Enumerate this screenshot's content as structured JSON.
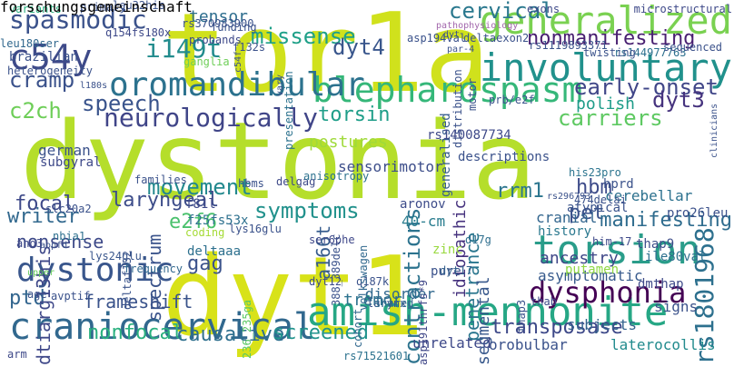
{
  "words": [
    {
      "text": "dystonia",
      "color": "#b5de2b"
    },
    {
      "text": "dyt1",
      "color": "#d8e219"
    },
    {
      "text": "tor1a",
      "color": "#d0e11c"
    },
    {
      "text": "amish-mennonite",
      "color": "#26a785"
    },
    {
      "text": "craniocervical",
      "color": "#31688e"
    },
    {
      "text": "torsion",
      "color": "#2a9d8a"
    },
    {
      "text": "generalized",
      "color": "#7ad151"
    },
    {
      "text": "involuntary",
      "color": "#21918c"
    },
    {
      "text": "blepharospasm",
      "color": "#35b779"
    },
    {
      "text": "oromandibular",
      "color": "#2c728e"
    },
    {
      "text": "dystonic",
      "color": "#39568c"
    },
    {
      "text": "dysphonia",
      "color": "#440154"
    },
    {
      "text": "c54y",
      "color": "#3e4a89"
    },
    {
      "text": "neurologically",
      "color": "#404588"
    },
    {
      "text": "spasmodic",
      "color": "#3b528b"
    },
    {
      "text": "nonmanifesting",
      "color": "#481f70"
    },
    {
      "text": "rs1801968",
      "color": "#2d708e"
    },
    {
      "text": "transposase",
      "color": "#3e4989"
    },
    {
      "text": "missense",
      "color": "#1fa088"
    },
    {
      "text": "cervical",
      "color": "#2a788e"
    },
    {
      "text": "early-onset",
      "color": "#404688"
    },
    {
      "text": "dyt3",
      "color": "#46337e"
    },
    {
      "text": "carriers",
      "color": "#5ec962"
    },
    {
      "text": "i149t",
      "color": "#228c8d"
    },
    {
      "text": "speech",
      "color": "#3a548c"
    },
    {
      "text": "c2ch",
      "color": "#6ece58"
    },
    {
      "text": "dyt4",
      "color": "#39568c"
    },
    {
      "text": "torsin",
      "color": "#1f9e89"
    },
    {
      "text": "cramp",
      "color": "#3b528b"
    },
    {
      "text": "movement",
      "color": "#23898e"
    },
    {
      "text": "symptoms",
      "color": "#21918c"
    },
    {
      "text": "laryngeal",
      "color": "#3d4d8a"
    },
    {
      "text": "contractions",
      "color": "#2c738e"
    },
    {
      "text": "writer",
      "color": "#31688e"
    },
    {
      "text": "focal",
      "color": "#3e4989"
    },
    {
      "text": "ptd",
      "color": "#32658e"
    },
    {
      "text": "nonfocal",
      "color": "#2ab07f"
    },
    {
      "text": "causative",
      "color": "#2e6f8e"
    },
    {
      "text": "screened",
      "color": "#20938c"
    },
    {
      "text": "e2f6",
      "color": "#4ac16d"
    },
    {
      "text": "gag",
      "color": "#3b528b"
    },
    {
      "text": "hbm",
      "color": "#3e4c8a"
    },
    {
      "text": "pet",
      "color": "#3b528b"
    },
    {
      "text": "manifesting",
      "color": "#2f6c8e"
    },
    {
      "text": "rrm1",
      "color": "#2b758e"
    },
    {
      "text": "dtiarg13his",
      "color": "#3f4889"
    },
    {
      "text": "spectrum",
      "color": "#3a538b"
    },
    {
      "text": "nonsense",
      "color": "#3e4a89"
    },
    {
      "text": "frameshift",
      "color": "#3a538b"
    },
    {
      "text": "penetrance",
      "color": "#2a768e"
    },
    {
      "text": "segmental",
      "color": "#38588c"
    },
    {
      "text": "idiopathic",
      "color": "#46327e"
    },
    {
      "text": "a166t",
      "color": "#365c8d"
    },
    {
      "text": "postures",
      "color": "#9fda3a"
    },
    {
      "text": "polish",
      "color": "#1e9c89"
    },
    {
      "text": "sensorimotor",
      "color": "#3d4e8a"
    },
    {
      "text": "tensor",
      "color": "#2e6e8e"
    },
    {
      "text": "generalised",
      "color": "#365d8d"
    },
    {
      "text": "tremor",
      "color": "#2c728e"
    },
    {
      "text": "cranial",
      "color": "#32658e"
    },
    {
      "text": "ancestry",
      "color": "#3f4788"
    },
    {
      "text": "signs",
      "color": "#3b528b"
    },
    {
      "text": "cerebellar",
      "color": "#2c718e"
    },
    {
      "text": "asymptomatic",
      "color": "#375a8c"
    },
    {
      "text": "disorder",
      "color": "#31688e"
    },
    {
      "text": "40-cm",
      "color": "#287c8e"
    },
    {
      "text": "dmthap",
      "color": "#3e4a89"
    },
    {
      "text": "latero­collis",
      "color": "#228b8d"
    },
    {
      "text": "orobulbar",
      "color": "#3b528b"
    },
    {
      "text": "unrelated",
      "color": "#3e4989"
    },
    {
      "text": "putamen",
      "color": "#8fd744"
    },
    {
      "text": "subjects",
      "color": "#33638d"
    },
    {
      "text": "history",
      "color": "#2a788e"
    },
    {
      "text": "atypical",
      "color": "#3a538b"
    },
    {
      "text": "thap9",
      "color": "#3d4e8a"
    },
    {
      "text": "pro26leu",
      "color": "#3b518b"
    },
    {
      "text": "his23pro",
      "color": "#2b748e"
    },
    {
      "text": "him-17",
      "color": "#3e4989"
    },
    {
      "text": "ile80val",
      "color": "#2d708e"
    },
    {
      "text": "pure",
      "color": "#3b528b"
    },
    {
      "text": "aronov",
      "color": "#3e4c8a"
    },
    {
      "text": "zinc",
      "color": "#98d83e"
    },
    {
      "text": "dyt17",
      "color": "#35608d"
    },
    {
      "text": "dyt12",
      "color": "#3e4c8a"
    },
    {
      "text": "q187k",
      "color": "#3b528b"
    },
    {
      "text": "larynx",
      "color": "#3b528b"
    },
    {
      "text": "cohort",
      "color": "#31688e"
    },
    {
      "text": "shared",
      "color": "#2f6b8e"
    },
    {
      "text": "rs71521601",
      "color": "#2c728e"
    },
    {
      "text": "asp191thrfs*9",
      "color": "#3f4788"
    },
    {
      "text": "thap3",
      "color": "#3b528b"
    },
    {
      "text": "thab",
      "color": "#3e4a89"
    },
    {
      "text": "ser6phe",
      "color": "#3f4889"
    },
    {
      "text": "volkswagen",
      "color": "#31688e"
    },
    {
      "text": "388_389delc",
      "color": "#3b528b"
    },
    {
      "text": "nbia1",
      "color": "#2d708e"
    },
    {
      "text": "slc20a2",
      "color": "#3b528b"
    },
    {
      "text": "ano3",
      "color": "#3e4989"
    },
    {
      "text": "aopfd",
      "color": "#3b528b"
    },
    {
      "text": "deltaf132",
      "color": "#3a538b"
    },
    {
      "text": "deltaaa",
      "color": "#2d708e"
    },
    {
      "text": "lys24glu",
      "color": "#39568c"
    },
    {
      "text": "frequency",
      "color": "#31688e"
    },
    {
      "text": "avptif",
      "color": "#3b528b"
    },
    {
      "text": "age",
      "color": "#3b528b"
    },
    {
      "text": "upper",
      "color": "#67cc5c"
    },
    {
      "text": "arm",
      "color": "#3e4989"
    },
    {
      "text": "236_235ga",
      "color": "#5ac864"
    },
    {
      "text": "coding",
      "color": "#a5db36"
    },
    {
      "text": "f25fs53x",
      "color": "#2d708e"
    },
    {
      "text": "lys16glu",
      "color": "#3b528b"
    },
    {
      "text": "f81l",
      "color": "#3e4989"
    },
    {
      "text": "families",
      "color": "#3b528b"
    },
    {
      "text": "hbms",
      "color": "#3b528b"
    },
    {
      "text": "delgag",
      "color": "#3e4989"
    },
    {
      "text": "anisotropy",
      "color": "#2c728e"
    },
    {
      "text": "descriptions",
      "color": "#3b528b"
    },
    {
      "text": "d17g",
      "color": "#2e6e8e"
    },
    {
      "text": "hprd",
      "color": "#3b528b"
    },
    {
      "text": "german",
      "color": "#3b528b"
    },
    {
      "text": "subgyral",
      "color": "#3e4989"
    },
    {
      "text": "heterogeneity",
      "color": "#3b528b"
    },
    {
      "text": "brazilian",
      "color": "#3b528b"
    },
    {
      "text": "variants",
      "color": "#2ab07f"
    },
    {
      "text": "primary",
      "color": "#3b528b"
    },
    {
      "text": "leu32his",
      "color": "#3b528b"
    },
    {
      "text": "q154fs180x",
      "color": "#3e4989"
    },
    {
      "text": "leu180ser",
      "color": "#31688e"
    },
    {
      "text": "rs370983900",
      "color": "#3b528b"
    },
    {
      "text": "funding",
      "color": "#3b528b"
    },
    {
      "text": "probands",
      "color": "#3e4989"
    },
    {
      "text": "f132s",
      "color": "#3b528b"
    },
    {
      "text": "c54f",
      "color": "#3b528b"
    },
    {
      "text": "ganglia",
      "color": "#6ece58"
    },
    {
      "text": "vary",
      "color": "#3b528b"
    },
    {
      "text": "presentation",
      "color": "#2c728e"
    },
    {
      "text": "asp194val",
      "color": "#3b528b"
    },
    {
      "text": "deltaexon2",
      "color": "#3b528b"
    },
    {
      "text": "rs144977763",
      "color": "#2d708e"
    },
    {
      "text": "rs1119893371",
      "color": "#3b528b"
    },
    {
      "text": "twisting",
      "color": "#3b528b"
    },
    {
      "text": "sequenced",
      "color": "#3b528b"
    },
    {
      "text": "exons",
      "color": "#3e4989"
    },
    {
      "text": "distribution",
      "color": "#3b528b"
    },
    {
      "text": "motor",
      "color": "#3b528b"
    },
    {
      "text": "prb/e2f",
      "color": "#3b528b"
    },
    {
      "text": "rs140087734",
      "color": "#3e4989"
    },
    {
      "text": "474delai",
      "color": "#3b528b"
    },
    {
      "text": "rs296793",
      "color": "#3b528b"
    },
    {
      "text": "l180s",
      "color": "#3b528b"
    },
    {
      "text": "pathophysiology",
      "color": "#a267ac"
    },
    {
      "text": "dyt",
      "color": "#3b528b"
    },
    {
      "text": "par-4",
      "color": "#3b528b"
    },
    {
      "text": "microstructural",
      "color": "#3e4989"
    },
    {
      "text": "clinicians",
      "color": "#3b528b"
    },
    {
      "text": "forschungsgemeinschaft",
      "color": "#3b528b"
    }
  ]
}
